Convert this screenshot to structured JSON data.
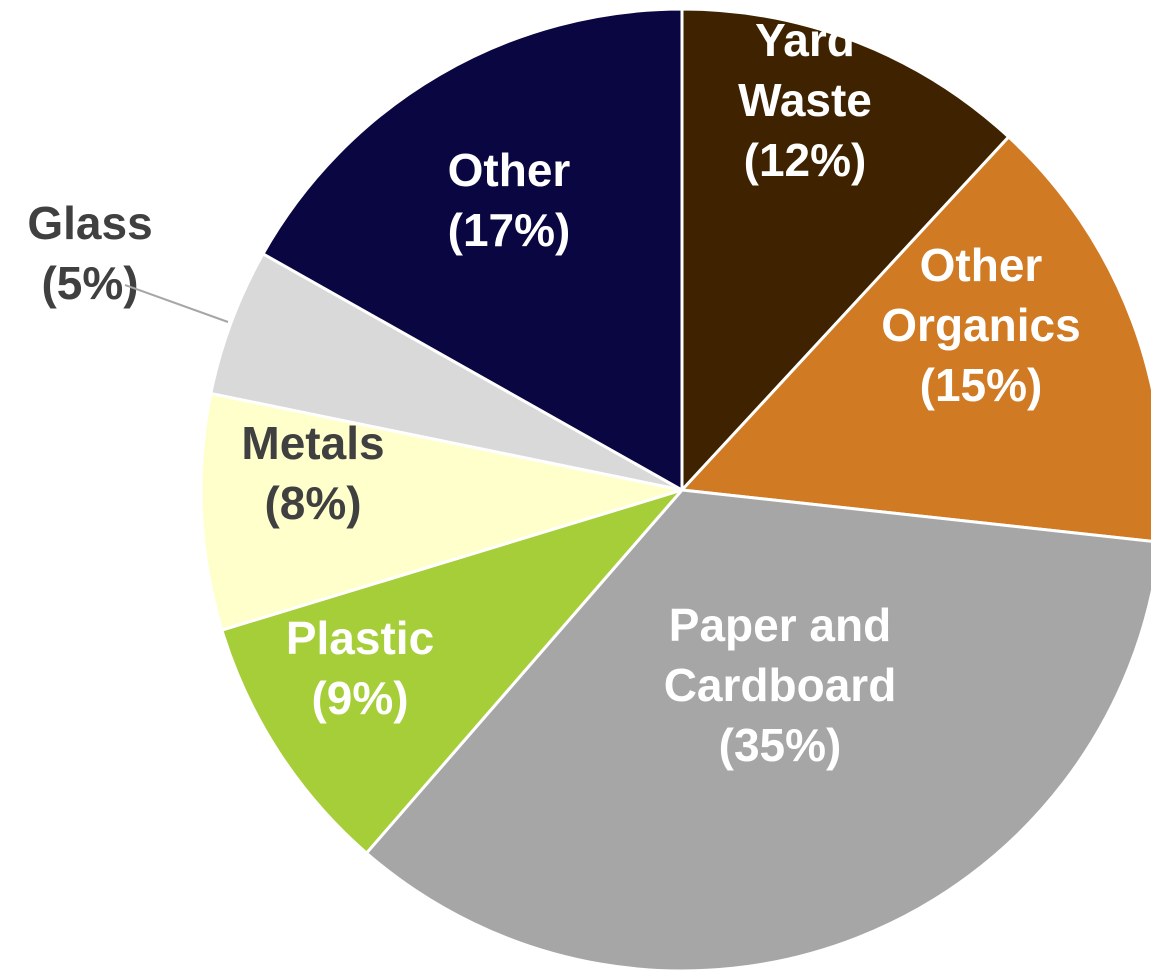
{
  "chart_data": {
    "type": "pie",
    "slices": [
      {
        "name": "Yard Waste",
        "value": 12,
        "label_lines": [
          "Yard",
          "Waste",
          "(12%)"
        ],
        "color": "#3f2300",
        "label_color": "#ffffff",
        "label_placement": "inside"
      },
      {
        "name": "Other Organics",
        "value": 15,
        "label_lines": [
          "Other",
          "Organics",
          "(15%)"
        ],
        "color": "#d07a23",
        "label_color": "#ffffff",
        "label_placement": "inside"
      },
      {
        "name": "Paper and Cardboard",
        "value": 35,
        "label_lines": [
          "Paper and",
          "Cardboard",
          "(35%)"
        ],
        "color": "#a6a6a6",
        "label_color": "#ffffff",
        "label_placement": "inside"
      },
      {
        "name": "Plastic",
        "value": 9,
        "label_lines": [
          "Plastic",
          "(9%)"
        ],
        "color": "#a6ce39",
        "label_color": "#ffffff",
        "label_placement": "inside"
      },
      {
        "name": "Metals",
        "value": 8,
        "label_lines": [
          "Metals",
          "(8%)"
        ],
        "color": "#ffffcc",
        "label_color": "#404040",
        "label_placement": "inside"
      },
      {
        "name": "Glass",
        "value": 5,
        "label_lines": [
          "Glass",
          "(5%)"
        ],
        "color": "#d9d9d9",
        "label_color": "#404040",
        "label_placement": "outside"
      },
      {
        "name": "Other",
        "value": 17,
        "label_lines": [
          "Other",
          "(17%)"
        ],
        "color": "#0a0641",
        "label_color": "#ffffff",
        "label_placement": "inside"
      }
    ],
    "start_angle": "12 o'clock",
    "direction": "clockwise",
    "legend": "none"
  }
}
